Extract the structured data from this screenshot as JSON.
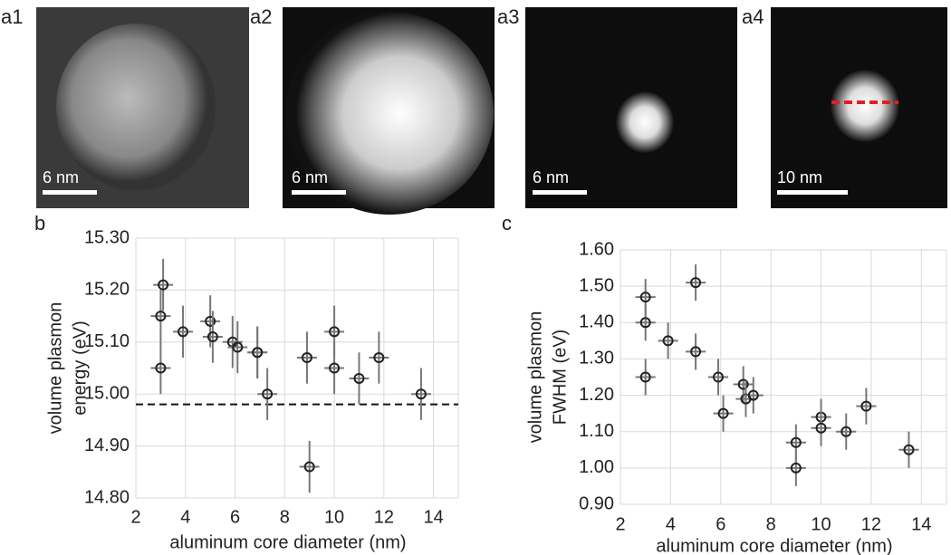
{
  "panels": [
    {
      "label": "a1",
      "scale_bar": "6 nm"
    },
    {
      "label": "a2",
      "scale_bar": "6 nm"
    },
    {
      "label": "a3",
      "scale_bar": "6 nm"
    },
    {
      "label": "a4",
      "scale_bar": "10 nm"
    }
  ],
  "chart_data": [
    {
      "type": "scatter",
      "panel_label": "b",
      "x_label": "aluminum core diameter (nm)",
      "y_label": [
        "volume plasmon",
        "energy (eV)"
      ],
      "x": [
        3.1,
        3.0,
        3.0,
        3.9,
        5.0,
        5.1,
        5.9,
        6.1,
        6.9,
        6.9,
        7.3,
        8.9,
        9.0,
        10.0,
        10.0,
        11.0,
        11.8,
        13.5
      ],
      "values": [
        15.21,
        15.15,
        15.05,
        15.12,
        15.14,
        15.11,
        15.1,
        15.09,
        15.08,
        15.08,
        15.0,
        15.07,
        14.86,
        15.12,
        15.05,
        15.03,
        15.07,
        15.0
      ],
      "yerr": [
        0.05,
        0.05,
        0.05,
        0.05,
        0.05,
        0.05,
        0.05,
        0.05,
        0.05,
        0.05,
        0.05,
        0.05,
        0.05,
        0.05,
        0.05,
        0.05,
        0.05,
        0.05
      ],
      "xerr": [
        0.4,
        0.4,
        0.4,
        0.4,
        0.4,
        0.4,
        0.4,
        0.4,
        0.4,
        0.4,
        0.4,
        0.4,
        0.4,
        0.4,
        0.4,
        0.4,
        0.4,
        0.4
      ],
      "reference_line": 14.98,
      "xlim": [
        2,
        15
      ],
      "xticks": [
        2,
        4,
        6,
        8,
        10,
        12,
        14
      ],
      "ylim": [
        14.8,
        15.3
      ],
      "yticks": [
        {
          "value": 14.8,
          "label": "14.80"
        },
        {
          "value": 14.9,
          "label": "14.90"
        },
        {
          "value": 15.0,
          "label": "15.00"
        },
        {
          "value": 15.1,
          "label": "15.10"
        },
        {
          "value": 15.2,
          "label": "15.20"
        },
        {
          "value": 15.3,
          "label": "15.30"
        }
      ],
      "grid": true,
      "color": "#222222"
    },
    {
      "type": "scatter",
      "panel_label": "c",
      "x_label": "aluminum core diameter (nm)",
      "y_label": [
        "volume plasmon",
        "FWHM (eV)"
      ],
      "x": [
        3.0,
        3.0,
        3.0,
        3.9,
        5.0,
        5.0,
        5.9,
        6.1,
        6.9,
        7.0,
        7.3,
        9.0,
        9.0,
        10.0,
        10.0,
        11.0,
        11.8,
        13.5
      ],
      "values": [
        1.47,
        1.4,
        1.25,
        1.35,
        1.51,
        1.32,
        1.25,
        1.15,
        1.23,
        1.19,
        1.2,
        1.07,
        1.0,
        1.14,
        1.11,
        1.1,
        1.17,
        1.05
      ],
      "yerr": [
        0.05,
        0.05,
        0.05,
        0.05,
        0.05,
        0.05,
        0.05,
        0.05,
        0.05,
        0.05,
        0.05,
        0.05,
        0.05,
        0.05,
        0.05,
        0.05,
        0.05,
        0.05
      ],
      "xerr": [
        0.4,
        0.4,
        0.4,
        0.4,
        0.4,
        0.4,
        0.4,
        0.4,
        0.4,
        0.4,
        0.4,
        0.4,
        0.4,
        0.4,
        0.4,
        0.4,
        0.4,
        0.4
      ],
      "xlim": [
        2,
        15
      ],
      "xticks": [
        2,
        4,
        6,
        8,
        10,
        12,
        14
      ],
      "ylim": [
        0.9,
        1.6
      ],
      "yticks": [
        {
          "value": 0.9,
          "label": "0.90"
        },
        {
          "value": 1.0,
          "label": "1.00"
        },
        {
          "value": 1.1,
          "label": "1.10"
        },
        {
          "value": 1.2,
          "label": "1.20"
        },
        {
          "value": 1.3,
          "label": "1.30"
        },
        {
          "value": 1.4,
          "label": "1.40"
        },
        {
          "value": 1.5,
          "label": "1.50"
        },
        {
          "value": 1.6,
          "label": "1.60"
        }
      ],
      "grid": true,
      "color": "#222222"
    }
  ]
}
